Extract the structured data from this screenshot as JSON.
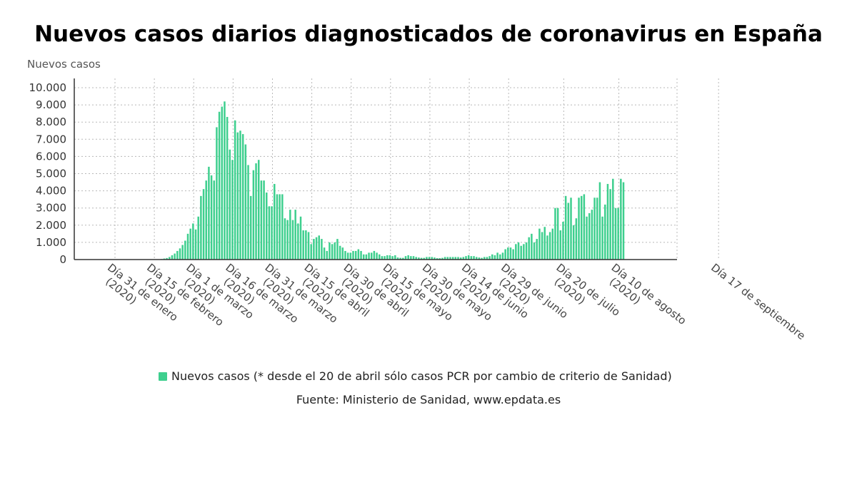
{
  "chart_data": {
    "type": "bar",
    "title": "Nuevos casos diarios diagnosticados de coronavirus en España",
    "ylabel": "Nuevos casos",
    "ylim": [
      0,
      10000
    ],
    "y_ticks": [
      "0",
      "1.000",
      "2.000",
      "3.000",
      "4.000",
      "5.000",
      "6.000",
      "7.000",
      "8.000",
      "9.000",
      "10.000"
    ],
    "x_start": "2020-01-31",
    "x_ticks": [
      {
        "date": "2020-01-31",
        "label": [
          "Día 31 de enero",
          "(2020)"
        ]
      },
      {
        "date": "2020-02-15",
        "label": [
          "Día 15 de febrero",
          "(2020)"
        ]
      },
      {
        "date": "2020-03-01",
        "label": [
          "Día 1 de marzo",
          "(2020)"
        ]
      },
      {
        "date": "2020-03-16",
        "label": [
          "Día 16 de marzo",
          "(2020)"
        ]
      },
      {
        "date": "2020-03-31",
        "label": [
          "Día 31 de marzo",
          "(2020)"
        ]
      },
      {
        "date": "2020-04-15",
        "label": [
          "Día 15 de abril",
          "(2020)"
        ]
      },
      {
        "date": "2020-04-30",
        "label": [
          "Día 30 de abril",
          "(2020)"
        ]
      },
      {
        "date": "2020-05-15",
        "label": [
          "Día 15 de mayo",
          "(2020)"
        ]
      },
      {
        "date": "2020-05-30",
        "label": [
          "Día 30 de mayo",
          "(2020)"
        ]
      },
      {
        "date": "2020-06-14",
        "label": [
          "Día 14 de junio",
          "(2020)"
        ]
      },
      {
        "date": "2020-06-29",
        "label": [
          "Día 29 de junio",
          "(2020)"
        ]
      },
      {
        "date": "2020-07-20",
        "label": [
          "Día 20 de julio",
          "(2020)"
        ]
      },
      {
        "date": "2020-08-10",
        "label": [
          "Día 10 de agosto",
          "(2020)"
        ]
      },
      {
        "date": "2020-09-17",
        "label": [
          "Día 17 de septiembre"
        ]
      }
    ],
    "series": [
      {
        "name": "Nuevos casos (* desde el 20 de abril sólo casos PCR por cambio de criterio de Sanidad)",
        "color": "#3ecf8e",
        "values": [
          0,
          0,
          0,
          0,
          0,
          0,
          0,
          0,
          0,
          0,
          0,
          0,
          0,
          0,
          0,
          0,
          0,
          0,
          0,
          0,
          0,
          0,
          0,
          0,
          0,
          0,
          0,
          0,
          0,
          0,
          5,
          10,
          20,
          30,
          60,
          90,
          150,
          250,
          350,
          500,
          650,
          850,
          1100,
          1500,
          1800,
          2100,
          1750,
          2500,
          3700,
          4100,
          4600,
          5400,
          4900,
          4600,
          7700,
          8600,
          8900,
          9200,
          8300,
          6400,
          5800,
          8100,
          7400,
          7500,
          7300,
          6700,
          5500,
          3700,
          5200,
          5600,
          5800,
          4600,
          4600,
          3900,
          3100,
          3100,
          4400,
          3800,
          3800,
          3800,
          2400,
          2300,
          2900,
          2300,
          2900,
          2100,
          2500,
          1700,
          1700,
          1600,
          900,
          1200,
          1300,
          1400,
          1200,
          700,
          500,
          1000,
          900,
          1000,
          1200,
          800,
          700,
          500,
          400,
          400,
          500,
          500,
          600,
          500,
          300,
          300,
          400,
          400,
          500,
          400,
          300,
          200,
          200,
          250,
          250,
          200,
          250,
          120,
          100,
          100,
          200,
          250,
          200,
          200,
          150,
          120,
          100,
          100,
          150,
          150,
          150,
          120,
          80,
          80,
          100,
          150,
          150,
          150,
          150,
          150,
          150,
          120,
          150,
          200,
          250,
          200,
          200,
          150,
          120,
          100,
          150,
          150,
          200,
          300,
          250,
          400,
          300,
          400,
          600,
          700,
          700,
          600,
          900,
          1000,
          800,
          900,
          1000,
          1300,
          1500,
          1000,
          1200,
          1800,
          1600,
          1900,
          1400,
          1600,
          1800,
          3000,
          3000,
          1700,
          2200,
          3700,
          3300,
          3600,
          2000,
          2400,
          3600,
          3700,
          3800,
          2500,
          2700,
          2900,
          3600,
          3600,
          4500,
          2500,
          3200,
          4400,
          4100,
          4700,
          3000,
          3000,
          4700,
          4500
        ]
      }
    ]
  },
  "source": "Fuente: Ministerio de Sanidad, www.epdata.es"
}
